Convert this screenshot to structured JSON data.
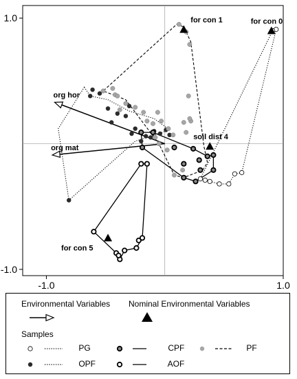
{
  "chart_data": {
    "type": "scatter",
    "title": "",
    "xlabel": "",
    "ylabel": "",
    "xlim": [
      -1.2,
      1.0
    ],
    "ylim": [
      -1.05,
      1.1
    ],
    "x_ticks": [
      {
        "value": -1.0,
        "label": "-1.0"
      },
      {
        "value": 1.0,
        "label": "1.0"
      }
    ],
    "y_ticks": [
      {
        "value": 1.0,
        "label": "1.0"
      },
      {
        "value": -1.0,
        "label": "-1.0"
      }
    ],
    "reference_lines": {
      "x": 0,
      "y": 0
    },
    "environmental_variables": [
      {
        "label": "org hor",
        "x": -0.93,
        "y": 0.33
      },
      {
        "label": "org mat",
        "x": -0.95,
        "y": -0.09
      }
    ],
    "nominal_environmental_variables": [
      {
        "label": "for con 1",
        "x": 0.16,
        "y": 0.91
      },
      {
        "label": "for con 0",
        "x": 0.9,
        "y": 0.9
      },
      {
        "label": "soil dist 4",
        "x": 0.38,
        "y": -0.02
      },
      {
        "label": "for con 5",
        "x": -0.48,
        "y": -0.75
      }
    ],
    "series": [
      {
        "name": "PG",
        "marker": "open-circle",
        "line": "dotted",
        "points": [
          [
            0.94,
            0.91
          ],
          [
            0.91,
            0.9
          ],
          [
            0.65,
            -0.23
          ],
          [
            0.59,
            -0.24
          ],
          [
            0.54,
            -0.32
          ],
          [
            0.46,
            -0.32
          ],
          [
            0.38,
            -0.3
          ],
          [
            0.34,
            -0.29
          ],
          [
            0.3,
            -0.28
          ]
        ],
        "hull": [
          [
            0.94,
            0.91
          ],
          [
            0.91,
            0.9
          ],
          [
            0.3,
            -0.28
          ],
          [
            0.38,
            -0.3
          ],
          [
            0.46,
            -0.32
          ],
          [
            0.54,
            -0.32
          ],
          [
            0.59,
            -0.24
          ],
          [
            0.65,
            -0.23
          ]
        ]
      },
      {
        "name": "OPF",
        "marker": "filled-circle",
        "line": "dotted",
        "points": [
          [
            -0.61,
            0.43
          ],
          [
            -0.63,
            0.38
          ],
          [
            -0.81,
            -0.45
          ],
          [
            -0.55,
            0.4
          ],
          [
            -0.48,
            0.28
          ],
          [
            -0.45,
            0.17
          ],
          [
            -0.4,
            0.24
          ],
          [
            -0.33,
            0.22
          ],
          [
            -0.28,
            0.08
          ],
          [
            -0.3,
            0.3
          ],
          [
            -0.25,
            0.12
          ],
          [
            -0.2,
            0.02
          ],
          [
            -0.16,
            0.06
          ],
          [
            -0.12,
            0.05
          ],
          [
            -0.09,
            0.1
          ],
          [
            -0.04,
            0.08
          ],
          [
            0.01,
            0.11
          ],
          [
            0.04,
            0.07
          ]
        ],
        "hull": [
          [
            -0.68,
            0.45
          ],
          [
            -0.63,
            0.38
          ],
          [
            -0.48,
            0.35
          ],
          [
            -0.3,
            0.26
          ],
          [
            -0.09,
            0.2
          ],
          [
            0.04,
            0.11
          ],
          [
            -0.25,
            0.02
          ],
          [
            -0.81,
            -0.45
          ],
          [
            -0.9,
            0.12
          ]
        ]
      },
      {
        "name": "CPF",
        "marker": "bold-grey-circle",
        "line": "solid",
        "points": [
          [
            -0.2,
            0.09
          ],
          [
            -0.1,
            0.09
          ],
          [
            -0.19,
            -0.03
          ],
          [
            0.08,
            -0.03
          ],
          [
            0.24,
            -0.04
          ],
          [
            0.29,
            -0.13
          ],
          [
            0.3,
            -0.21
          ],
          [
            0.16,
            -0.16
          ],
          [
            0.16,
            -0.27
          ],
          [
            0.26,
            -0.3
          ],
          [
            0.36,
            -0.1
          ],
          [
            0.41,
            -0.09
          ],
          [
            0.41,
            -0.21
          ]
        ],
        "hull": [
          [
            -0.2,
            0.09
          ],
          [
            -0.1,
            0.09
          ],
          [
            0.24,
            -0.04
          ],
          [
            0.36,
            -0.1
          ],
          [
            0.41,
            -0.09
          ],
          [
            0.41,
            -0.21
          ],
          [
            0.26,
            -0.3
          ],
          [
            0.16,
            -0.27
          ],
          [
            -0.19,
            -0.03
          ]
        ]
      },
      {
        "name": "AOF",
        "marker": "bold-open-circle",
        "line": "solid",
        "points": [
          [
            -0.6,
            -0.7
          ],
          [
            -0.41,
            -0.87
          ],
          [
            -0.38,
            -0.92
          ],
          [
            -0.39,
            -0.89
          ],
          [
            -0.34,
            -0.85
          ],
          [
            -0.24,
            -0.83
          ],
          [
            -0.22,
            -0.77
          ],
          [
            -0.19,
            -0.75
          ],
          [
            -0.2,
            -0.16
          ],
          [
            -0.15,
            -0.16
          ]
        ],
        "hull": [
          [
            -0.2,
            -0.16
          ],
          [
            -0.6,
            -0.7
          ],
          [
            -0.41,
            -0.87
          ],
          [
            -0.38,
            -0.92
          ],
          [
            -0.34,
            -0.85
          ],
          [
            -0.24,
            -0.83
          ],
          [
            -0.19,
            -0.75
          ],
          [
            -0.15,
            -0.16
          ]
        ]
      },
      {
        "name": "PF",
        "marker": "grey-circle",
        "line": "dashed",
        "points": [
          [
            0.12,
            0.95
          ],
          [
            0.18,
            0.89
          ],
          [
            0.21,
            0.79
          ],
          [
            0.2,
            0.38
          ],
          [
            0.22,
            0.18
          ],
          [
            0.21,
            0.2
          ],
          [
            -0.52,
            0.42
          ],
          [
            -0.44,
            0.44
          ],
          [
            -0.42,
            0.39
          ],
          [
            -0.4,
            0.38
          ],
          [
            -0.38,
            0.27
          ],
          [
            -0.33,
            0.32
          ],
          [
            -0.25,
            0.29
          ],
          [
            -0.18,
            0.25
          ],
          [
            -0.15,
            0.18
          ],
          [
            -0.1,
            0.16
          ],
          [
            -0.06,
            0.25
          ],
          [
            -0.03,
            0.18
          ],
          [
            -0.08,
            0.05
          ],
          [
            -0.05,
            0.0
          ],
          [
            0.03,
            0.12
          ],
          [
            0.16,
            0.17
          ],
          [
            0.18,
            0.09
          ],
          [
            0.07,
            0.07
          ],
          [
            0.02,
            -0.05
          ],
          [
            0.08,
            -0.25
          ],
          [
            0.15,
            -0.21
          ]
        ],
        "hull": [
          [
            0.1,
            0.95
          ],
          [
            0.16,
            0.93
          ],
          [
            0.22,
            0.81
          ],
          [
            0.33,
            -0.02
          ],
          [
            0.36,
            -0.15
          ],
          [
            0.32,
            -0.21
          ],
          [
            0.16,
            -0.27
          ],
          [
            0.08,
            -0.25
          ],
          [
            -0.05,
            0.0
          ],
          [
            -0.33,
            0.35
          ],
          [
            -0.52,
            0.42
          ]
        ]
      }
    ]
  },
  "legend": {
    "env_vars_title": "Environmental Variables",
    "nominal_title": "Nominal Environmental Variables",
    "samples_title": "Samples",
    "entries": [
      {
        "series": "PG",
        "label": "PG"
      },
      {
        "series": "OPF",
        "label": "OPF"
      },
      {
        "series": "CPF",
        "label": "CPF"
      },
      {
        "series": "AOF",
        "label": "AOF"
      },
      {
        "series": "PF",
        "label": "PF"
      }
    ]
  },
  "colors": {
    "filled": "#2b2b2b",
    "grey": "#8a8a8a",
    "grey_light": "#a6a6a6",
    "line": "#000000",
    "ref_line": "#9a9a9a"
  }
}
